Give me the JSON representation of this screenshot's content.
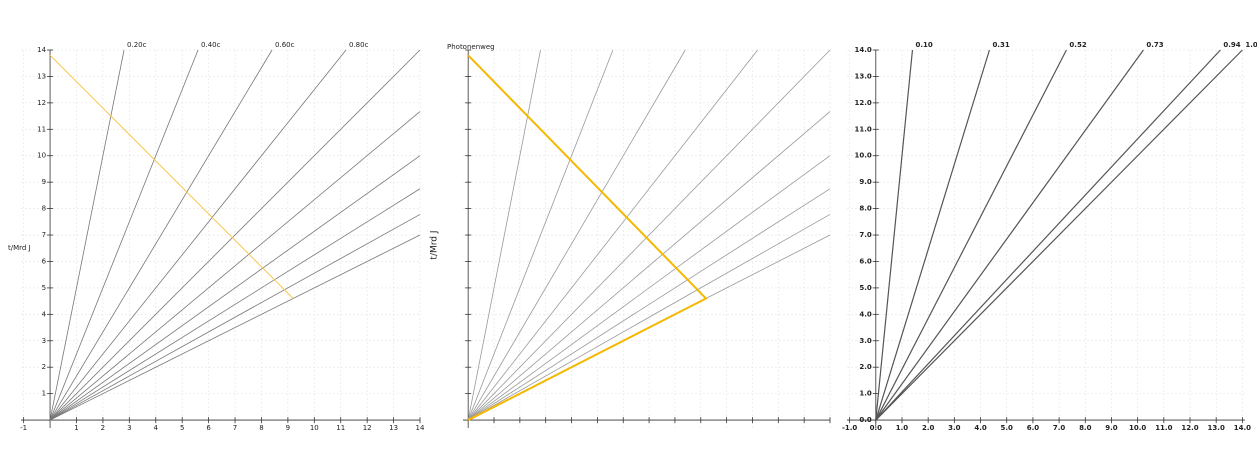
{
  "chart_data": [
    {
      "type": "line",
      "ylabel": "t/Mrd J",
      "grid": true,
      "tick_labels": true,
      "xlim": [
        -1.1,
        14
      ],
      "ylim": [
        -0.3,
        14
      ],
      "xticks": [
        -1,
        1,
        2,
        3,
        4,
        5,
        6,
        7,
        8,
        9,
        10,
        11,
        12,
        13,
        14
      ],
      "yticks": [
        1,
        2,
        3,
        4,
        5,
        6,
        7,
        8,
        9,
        10,
        11,
        12,
        13,
        14
      ],
      "series": [
        {
          "name": "0.20c",
          "color": "#777777",
          "x": [
            0,
            2.8
          ],
          "values": [
            0,
            14
          ]
        },
        {
          "name": "0.40c",
          "color": "#777777",
          "x": [
            0,
            5.6
          ],
          "values": [
            0,
            14
          ]
        },
        {
          "name": "0.60c",
          "color": "#777777",
          "x": [
            0,
            8.4
          ],
          "values": [
            0,
            14
          ]
        },
        {
          "name": "0.80c",
          "color": "#777777",
          "x": [
            0,
            11.2
          ],
          "values": [
            0,
            14
          ]
        },
        {
          "color": "#777777",
          "x": [
            0,
            14
          ],
          "values": [
            0,
            14
          ]
        },
        {
          "color": "#777777",
          "x": [
            0,
            14
          ],
          "values": [
            0,
            11.67
          ]
        },
        {
          "color": "#777777",
          "x": [
            0,
            14
          ],
          "values": [
            0,
            10
          ]
        },
        {
          "color": "#777777",
          "x": [
            0,
            14
          ],
          "values": [
            0,
            8.75
          ]
        },
        {
          "color": "#777777",
          "x": [
            0,
            14
          ],
          "values": [
            0,
            7.78
          ]
        },
        {
          "color": "#777777",
          "x": [
            0,
            14
          ],
          "values": [
            0,
            7
          ]
        },
        {
          "color": "#f8c850",
          "x": [
            0,
            9.2
          ],
          "values": [
            13.8,
            4.6
          ]
        }
      ]
    },
    {
      "type": "line",
      "title": "Photonenweg",
      "ylabel": "t/Mrd J",
      "grid": true,
      "tick_labels": false,
      "xlim": [
        -0.2,
        14
      ],
      "ylim": [
        -0.3,
        14
      ],
      "xticks": [
        1,
        2,
        3,
        4,
        5,
        6,
        7,
        8,
        9,
        10,
        11,
        12,
        13,
        14
      ],
      "yticks": [
        1,
        2,
        3,
        4,
        5,
        6,
        7,
        8,
        9,
        10,
        11,
        12,
        13,
        14
      ],
      "series": [
        {
          "color": "#999999",
          "x": [
            0,
            2.8
          ],
          "values": [
            0,
            14
          ]
        },
        {
          "color": "#999999",
          "x": [
            0,
            5.6
          ],
          "values": [
            0,
            14
          ]
        },
        {
          "color": "#999999",
          "x": [
            0,
            8.4
          ],
          "values": [
            0,
            14
          ]
        },
        {
          "color": "#999999",
          "x": [
            0,
            11.2
          ],
          "values": [
            0,
            14
          ]
        },
        {
          "color": "#999999",
          "x": [
            0,
            14
          ],
          "values": [
            0,
            14
          ]
        },
        {
          "color": "#999999",
          "x": [
            0,
            14
          ],
          "values": [
            0,
            11.67
          ]
        },
        {
          "color": "#999999",
          "x": [
            0,
            14
          ],
          "values": [
            0,
            10
          ]
        },
        {
          "color": "#999999",
          "x": [
            0,
            14
          ],
          "values": [
            0,
            8.75
          ]
        },
        {
          "color": "#999999",
          "x": [
            0,
            14
          ],
          "values": [
            0,
            7.78
          ]
        },
        {
          "color": "#999999",
          "x": [
            0,
            14
          ],
          "values": [
            0,
            7
          ]
        },
        {
          "color": "#f5b800",
          "x": [
            0,
            9.2,
            0
          ],
          "values": [
            0,
            4.6,
            13.8
          ]
        }
      ]
    },
    {
      "type": "line",
      "grid": true,
      "tick_labels": true,
      "xlim": [
        -1.1,
        14.1
      ],
      "ylim": [
        -0.3,
        14
      ],
      "xticks": [
        {
          "value": -1,
          "label": "-1.0"
        },
        {
          "value": 0,
          "label": "0.0"
        },
        {
          "value": 1,
          "label": "1.0"
        },
        {
          "value": 2,
          "label": "2.0"
        },
        {
          "value": 3,
          "label": "3.0"
        },
        {
          "value": 4,
          "label": "4.0"
        },
        {
          "value": 5,
          "label": "5.0"
        },
        {
          "value": 6,
          "label": "6.0"
        },
        {
          "value": 7,
          "label": "7.0"
        },
        {
          "value": 8,
          "label": "8.0"
        },
        {
          "value": 9,
          "label": "9.0"
        },
        {
          "value": 10,
          "label": "10.0"
        },
        {
          "value": 11,
          "label": "11.0"
        },
        {
          "value": 12,
          "label": "12.0"
        },
        {
          "value": 13,
          "label": "13.0"
        },
        {
          "value": 14,
          "label": "14.0"
        }
      ],
      "yticks": [
        {
          "value": 0,
          "label": "0.0"
        },
        {
          "value": 1,
          "label": "1.0"
        },
        {
          "value": 2,
          "label": "2.0"
        },
        {
          "value": 3,
          "label": "3.0"
        },
        {
          "value": 4,
          "label": "4.0"
        },
        {
          "value": 5,
          "label": "5.0"
        },
        {
          "value": 6,
          "label": "6.0"
        },
        {
          "value": 7,
          "label": "7.0"
        },
        {
          "value": 8,
          "label": "8.0"
        },
        {
          "value": 9,
          "label": "9.0"
        },
        {
          "value": 10,
          "label": "10.0"
        },
        {
          "value": 11,
          "label": "11.0"
        },
        {
          "value": 12,
          "label": "12.0"
        },
        {
          "value": 13,
          "label": "13.0"
        },
        {
          "value": 14,
          "label": "14.0"
        }
      ],
      "series": [
        {
          "name": "0.10",
          "color": "#555555",
          "x": [
            0,
            1.4
          ],
          "values": [
            0,
            14
          ]
        },
        {
          "name": "0.31",
          "color": "#555555",
          "x": [
            0,
            4.34
          ],
          "values": [
            0,
            14
          ]
        },
        {
          "name": "0.52",
          "color": "#555555",
          "x": [
            0,
            7.28
          ],
          "values": [
            0,
            14
          ]
        },
        {
          "name": "0.73",
          "color": "#555555",
          "x": [
            0,
            10.22
          ],
          "values": [
            0,
            14
          ]
        },
        {
          "name": "0.94",
          "color": "#555555",
          "x": [
            0,
            13.16
          ],
          "values": [
            0,
            14
          ]
        },
        {
          "name": "1.00",
          "color": "#555555",
          "x": [
            0,
            14
          ],
          "values": [
            0,
            14
          ]
        }
      ]
    }
  ]
}
